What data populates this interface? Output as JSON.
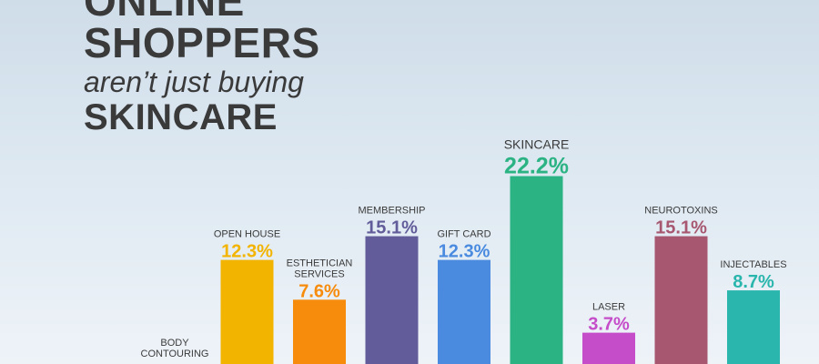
{
  "headline": {
    "line1": "ONLINE",
    "line2": "SHOPPERS",
    "line3": "aren’t just buying",
    "line4": "SKINCARE"
  },
  "chart_data": {
    "type": "bar",
    "title": "ONLINE SHOPPERS aren’t just buying SKINCARE",
    "ylim": [
      0,
      25
    ],
    "grid": false,
    "categories": [
      "BODY CONTOURING",
      "OPEN HOUSE",
      "ESTHETICIAN SERVICES",
      "MEMBERSHIP",
      "GIFT CARD",
      "SKINCARE",
      "LASER",
      "NEUROTOXINS",
      "INJECTABLES"
    ],
    "category_lines": [
      [
        "BODY",
        "CONTOURING"
      ],
      [
        "OPEN HOUSE"
      ],
      [
        "ESTHETICIAN",
        "SERVICES"
      ],
      [
        "MEMBERSHIP"
      ],
      [
        "GIFT CARD"
      ],
      [
        "SKINCARE"
      ],
      [
        "LASER"
      ],
      [
        "NEUROTOXINS"
      ],
      [
        "INJECTABLES"
      ]
    ],
    "values": [
      null,
      12.3,
      7.6,
      15.1,
      12.3,
      22.2,
      3.7,
      15.1,
      8.7
    ],
    "value_labels": [
      "",
      "12.3%",
      "7.6%",
      "15.1%",
      "12.3%",
      "22.2%",
      "3.7%",
      "15.1%",
      "8.7%"
    ],
    "colors": [
      "#8f8f8f",
      "#f3b400",
      "#f78b0c",
      "#625d9a",
      "#4a8be0",
      "#2bb383",
      "#c64dc9",
      "#a75770",
      "#2ab5ad"
    ]
  }
}
